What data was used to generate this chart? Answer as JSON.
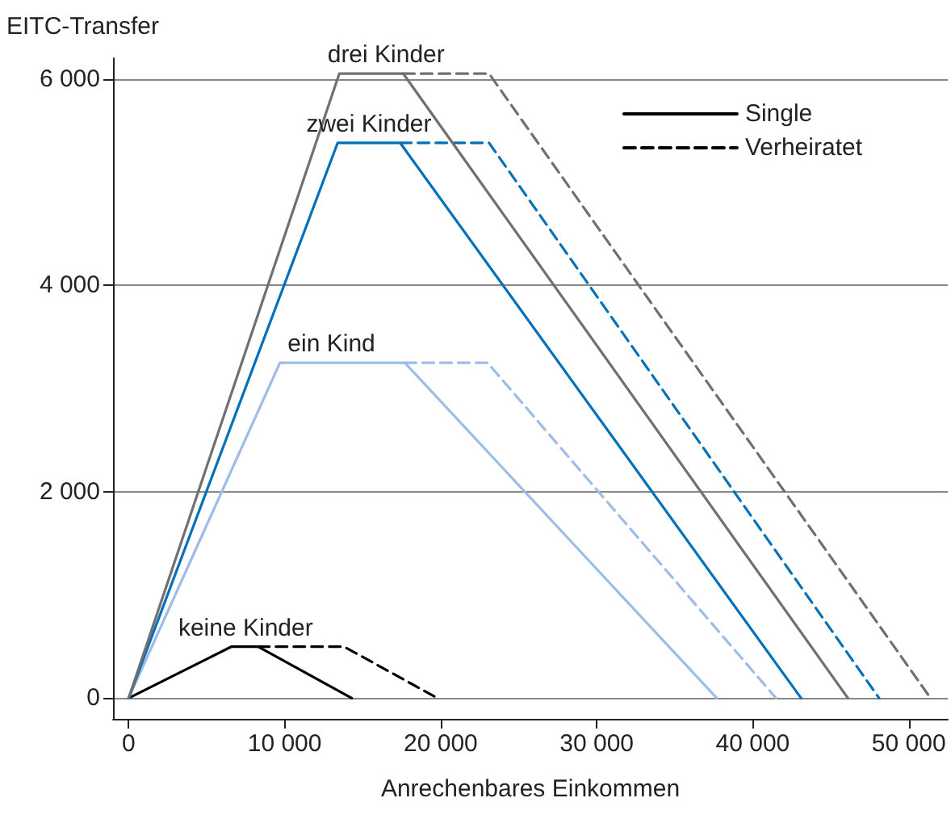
{
  "chart_data": {
    "type": "line",
    "xlabel": "Anrechenbares Einkommen",
    "ylabel": "EITC-Transfer",
    "xlim": [
      -1000,
      52500
    ],
    "ylim": [
      -200,
      6200
    ],
    "xticks": [
      0,
      {
        "value": 10000,
        "label": "10 000"
      },
      {
        "value": 20000,
        "label": "20 000"
      },
      {
        "value": 30000,
        "label": "30 000"
      },
      {
        "value": 40000,
        "label": "40 000"
      },
      {
        "value": 50000,
        "label": "50 000"
      }
    ],
    "yticks": [
      0,
      {
        "value": 2000,
        "label": "2 000"
      },
      {
        "value": 4000,
        "label": "4 000"
      },
      {
        "value": 6000,
        "label": "6 000"
      }
    ],
    "grid": "y",
    "legend": "top right",
    "marker": "none",
    "series": [
      {
        "name": "Single",
        "color": "#000000",
        "line_style": "solid",
        "x": [
          0,
          6600,
          8300,
          14300
        ],
        "values": [
          0,
          500,
          500,
          0
        ]
      },
      {
        "name": "Verheiratet",
        "color": "#000000",
        "line_style": "dashed",
        "x": [
          8300,
          13800,
          19800
        ],
        "values": [
          500,
          500,
          0
        ]
      },
      {
        "color": "#9dbde8",
        "line_style": "solid",
        "x": [
          0,
          9700,
          17700,
          37700
        ],
        "values": [
          0,
          3250,
          3250,
          0
        ]
      },
      {
        "color": "#9dbde8",
        "line_style": "dashed",
        "x": [
          17700,
          23000,
          41500
        ],
        "values": [
          3250,
          3250,
          0
        ]
      },
      {
        "color": "#0070b8",
        "line_style": "solid",
        "x": [
          0,
          13400,
          17400,
          43100
        ],
        "values": [
          0,
          5380,
          5380,
          0
        ]
      },
      {
        "color": "#0070b8",
        "line_style": "dashed",
        "x": [
          17400,
          23100,
          48100
        ],
        "values": [
          5380,
          5380,
          0
        ]
      },
      {
        "color": "#707070",
        "line_style": "solid",
        "x": [
          0,
          13500,
          17600,
          46100
        ],
        "values": [
          0,
          6050,
          6050,
          0
        ]
      },
      {
        "color": "#707070",
        "line_style": "dashed",
        "x": [
          17600,
          23100,
          51400
        ],
        "values": [
          6050,
          6050,
          0
        ]
      }
    ],
    "annotations": [
      {
        "text": "keine Kinder",
        "x": 7500,
        "y": 500
      },
      {
        "text": "ein Kind",
        "x": 13000,
        "y": 3250
      },
      {
        "text": "zwei Kinder",
        "x": 15400,
        "y": 5380
      },
      {
        "text": "drei Kinder",
        "x": 16500,
        "y": 6050
      }
    ]
  }
}
